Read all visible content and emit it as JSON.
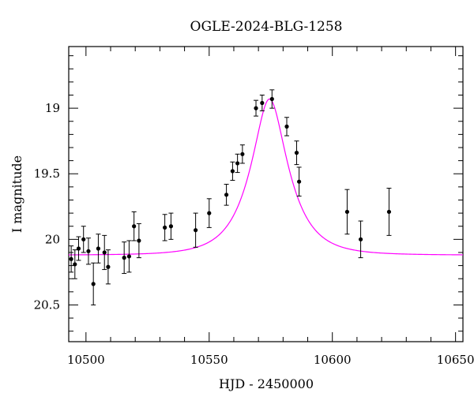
{
  "chart_data": {
    "type": "scatter",
    "title": "OGLE-2024-BLG-1258",
    "xlabel": "HJD - 2450000",
    "ylabel": "I magnitude",
    "xlim": [
      10493,
      10653
    ],
    "ylim": [
      20.78,
      18.53
    ],
    "y_inverted": true,
    "x_major_ticks": [
      10500,
      10550,
      10600,
      10650
    ],
    "x_tick_labels": [
      "10500",
      "10550",
      "10600",
      "10650"
    ],
    "x_minor_step": 10,
    "y_major_ticks": [
      19,
      19.5,
      20,
      20.5
    ],
    "y_tick_labels": [
      "19",
      "19.5",
      "20",
      "20.5"
    ],
    "y_minor_step": 0.1,
    "grid": false,
    "colors": {
      "points": "#000000",
      "model": "#ff00ff",
      "axes": "#000000"
    },
    "model_curve": {
      "t0": 10574.5,
      "u0": 0.42,
      "tE": 13.5,
      "I_base": 20.12,
      "I_peak": 18.93
    },
    "points": [
      {
        "x": 10494.0,
        "y": 20.15,
        "err": 0.1
      },
      {
        "x": 10495.5,
        "y": 20.19,
        "err": 0.11
      },
      {
        "x": 10497.0,
        "y": 20.07,
        "err": 0.09
      },
      {
        "x": 10499.0,
        "y": 20.0,
        "err": 0.1
      },
      {
        "x": 10501.0,
        "y": 20.09,
        "err": 0.1
      },
      {
        "x": 10503.0,
        "y": 20.34,
        "err": 0.16
      },
      {
        "x": 10505.0,
        "y": 20.07,
        "err": 0.11
      },
      {
        "x": 10507.5,
        "y": 20.1,
        "err": 0.13
      },
      {
        "x": 10509.0,
        "y": 20.21,
        "err": 0.13
      },
      {
        "x": 10515.5,
        "y": 20.14,
        "err": 0.12
      },
      {
        "x": 10517.5,
        "y": 20.13,
        "err": 0.12
      },
      {
        "x": 10519.5,
        "y": 19.9,
        "err": 0.11
      },
      {
        "x": 10521.5,
        "y": 20.01,
        "err": 0.13
      },
      {
        "x": 10532.0,
        "y": 19.91,
        "err": 0.1
      },
      {
        "x": 10534.5,
        "y": 19.9,
        "err": 0.1
      },
      {
        "x": 10544.5,
        "y": 19.93,
        "err": 0.13
      },
      {
        "x": 10550.0,
        "y": 19.8,
        "err": 0.11
      },
      {
        "x": 10557.0,
        "y": 19.66,
        "err": 0.08
      },
      {
        "x": 10559.5,
        "y": 19.48,
        "err": 0.07
      },
      {
        "x": 10561.5,
        "y": 19.42,
        "err": 0.07
      },
      {
        "x": 10563.5,
        "y": 19.35,
        "err": 0.07
      },
      {
        "x": 10569.0,
        "y": 19.0,
        "err": 0.06
      },
      {
        "x": 10571.5,
        "y": 18.96,
        "err": 0.06
      },
      {
        "x": 10575.5,
        "y": 18.93,
        "err": 0.07
      },
      {
        "x": 10581.5,
        "y": 19.14,
        "err": 0.07
      },
      {
        "x": 10585.5,
        "y": 19.34,
        "err": 0.09
      },
      {
        "x": 10586.5,
        "y": 19.56,
        "err": 0.11
      },
      {
        "x": 10606.0,
        "y": 19.79,
        "err": 0.17
      },
      {
        "x": 10611.5,
        "y": 20.0,
        "err": 0.14
      },
      {
        "x": 10623.0,
        "y": 19.79,
        "err": 0.18
      }
    ]
  }
}
